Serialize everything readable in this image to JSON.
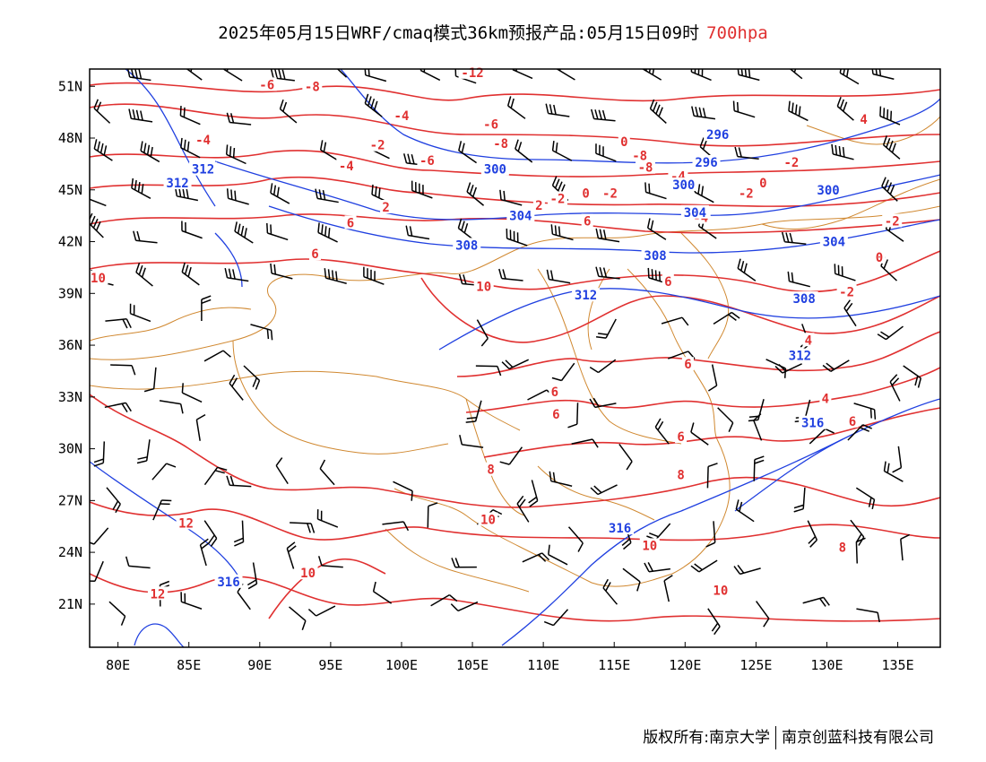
{
  "title": {
    "text": "2025年05月15日WRF/cmaq模式36km预报产品:05月15日09时",
    "level": "700hpa",
    "level_color": "#e03030"
  },
  "axes": {
    "lon_ticks": [
      "80E",
      "85E",
      "90E",
      "95E",
      "100E",
      "105E",
      "110E",
      "115E",
      "120E",
      "125E",
      "130E",
      "135E"
    ],
    "lon_values": [
      80,
      85,
      90,
      95,
      100,
      105,
      110,
      115,
      120,
      125,
      130,
      135
    ],
    "lat_ticks": [
      "51N",
      "48N",
      "45N",
      "42N",
      "39N",
      "36N",
      "33N",
      "30N",
      "27N",
      "24N",
      "21N"
    ],
    "lat_values": [
      51,
      48,
      45,
      42,
      39,
      36,
      33,
      30,
      27,
      24,
      21
    ],
    "lon_range": [
      78,
      138
    ],
    "lat_range": [
      18.5,
      52
    ]
  },
  "colors": {
    "height_contours": "#2040e0",
    "temperature_contours": "#e03030",
    "boundaries": "#d08830",
    "wind_barbs": "#000000"
  },
  "height_labels": [
    {
      "text": "312",
      "lon": 86.0,
      "lat": 46.2
    },
    {
      "text": "312",
      "lon": 84.2,
      "lat": 45.4
    },
    {
      "text": "300",
      "lon": 106.6,
      "lat": 46.2
    },
    {
      "text": "296",
      "lon": 122.3,
      "lat": 48.2
    },
    {
      "text": "296",
      "lon": 121.5,
      "lat": 46.6
    },
    {
      "text": "300",
      "lon": 119.9,
      "lat": 45.3
    },
    {
      "text": "300",
      "lon": 130.1,
      "lat": 45.0
    },
    {
      "text": "304",
      "lon": 108.4,
      "lat": 43.5
    },
    {
      "text": "304",
      "lon": 120.7,
      "lat": 43.7
    },
    {
      "text": "304",
      "lon": 130.5,
      "lat": 42.0
    },
    {
      "text": "308",
      "lon": 104.6,
      "lat": 41.8
    },
    {
      "text": "308",
      "lon": 117.9,
      "lat": 41.2
    },
    {
      "text": "308",
      "lon": 128.4,
      "lat": 38.7
    },
    {
      "text": "312",
      "lon": 113.0,
      "lat": 38.9
    },
    {
      "text": "312",
      "lon": 128.1,
      "lat": 35.4
    },
    {
      "text": "316",
      "lon": 129.0,
      "lat": 31.5
    },
    {
      "text": "316",
      "lon": 115.4,
      "lat": 25.4
    },
    {
      "text": "316",
      "lon": 87.8,
      "lat": 22.3
    }
  ],
  "temperature_labels": [
    {
      "text": "-12",
      "lon": 105.0,
      "lat": 51.8
    },
    {
      "text": "-8",
      "lon": 93.7,
      "lat": 51.0
    },
    {
      "text": "-6",
      "lon": 90.5,
      "lat": 51.1
    },
    {
      "text": "-4",
      "lon": 100.0,
      "lat": 49.3
    },
    {
      "text": "-2",
      "lon": 98.3,
      "lat": 47.6
    },
    {
      "text": "-4",
      "lon": 86.0,
      "lat": 47.9
    },
    {
      "text": "-4",
      "lon": 96.1,
      "lat": 46.4
    },
    {
      "text": "-6",
      "lon": 106.3,
      "lat": 48.8
    },
    {
      "text": "-8",
      "lon": 107.0,
      "lat": 47.7
    },
    {
      "text": "-6",
      "lon": 101.8,
      "lat": 46.7
    },
    {
      "text": "0",
      "lon": 115.7,
      "lat": 47.8
    },
    {
      "text": "-8",
      "lon": 116.8,
      "lat": 47.0
    },
    {
      "text": "-8",
      "lon": 117.2,
      "lat": 46.3
    },
    {
      "text": "-4",
      "lon": 119.5,
      "lat": 45.8
    },
    {
      "text": "0",
      "lon": 125.5,
      "lat": 45.4
    },
    {
      "text": "-2",
      "lon": 127.5,
      "lat": 46.6
    },
    {
      "text": "4",
      "lon": 132.6,
      "lat": 49.1
    },
    {
      "text": "-2",
      "lon": 111.0,
      "lat": 44.5
    },
    {
      "text": "0",
      "lon": 113.0,
      "lat": 44.8
    },
    {
      "text": "-2",
      "lon": 114.7,
      "lat": 44.8
    },
    {
      "text": "-2",
      "lon": 124.3,
      "lat": 44.8
    },
    {
      "text": "2",
      "lon": 109.7,
      "lat": 44.1
    },
    {
      "text": "2",
      "lon": 98.9,
      "lat": 44.0
    },
    {
      "text": "6",
      "lon": 113.1,
      "lat": 43.2
    },
    {
      "text": "-4",
      "lon": 121.1,
      "lat": 43.4
    },
    {
      "text": "-2",
      "lon": 134.6,
      "lat": 43.2
    },
    {
      "text": "0",
      "lon": 133.7,
      "lat": 41.1
    },
    {
      "text": "-2",
      "lon": 131.4,
      "lat": 39.1
    },
    {
      "text": "6",
      "lon": 96.4,
      "lat": 43.1
    },
    {
      "text": "6",
      "lon": 93.9,
      "lat": 41.3
    },
    {
      "text": "6",
      "lon": 118.8,
      "lat": 39.7
    },
    {
      "text": "10",
      "lon": 78.6,
      "lat": 39.9
    },
    {
      "text": "10",
      "lon": 105.8,
      "lat": 39.4
    },
    {
      "text": "4",
      "lon": 128.7,
      "lat": 36.3
    },
    {
      "text": "6",
      "lon": 120.2,
      "lat": 34.9
    },
    {
      "text": "6",
      "lon": 110.8,
      "lat": 33.3
    },
    {
      "text": "6",
      "lon": 110.9,
      "lat": 32.0
    },
    {
      "text": "4",
      "lon": 129.9,
      "lat": 32.9
    },
    {
      "text": "6",
      "lon": 131.8,
      "lat": 31.6
    },
    {
      "text": "6",
      "lon": 119.7,
      "lat": 30.7
    },
    {
      "text": "8",
      "lon": 106.3,
      "lat": 28.8
    },
    {
      "text": "8",
      "lon": 119.7,
      "lat": 28.5
    },
    {
      "text": "10",
      "lon": 106.1,
      "lat": 25.9
    },
    {
      "text": "10",
      "lon": 117.5,
      "lat": 24.4
    },
    {
      "text": "10",
      "lon": 122.5,
      "lat": 21.8
    },
    {
      "text": "10",
      "lon": 93.4,
      "lat": 22.8
    },
    {
      "text": "12",
      "lon": 84.8,
      "lat": 25.7
    },
    {
      "text": "12",
      "lon": 82.8,
      "lat": 21.6
    },
    {
      "text": "8",
      "lon": 131.1,
      "lat": 24.3
    }
  ],
  "copyright": {
    "left": "版权所有:南京大学",
    "right": "南京创蓝科技有限公司"
  }
}
